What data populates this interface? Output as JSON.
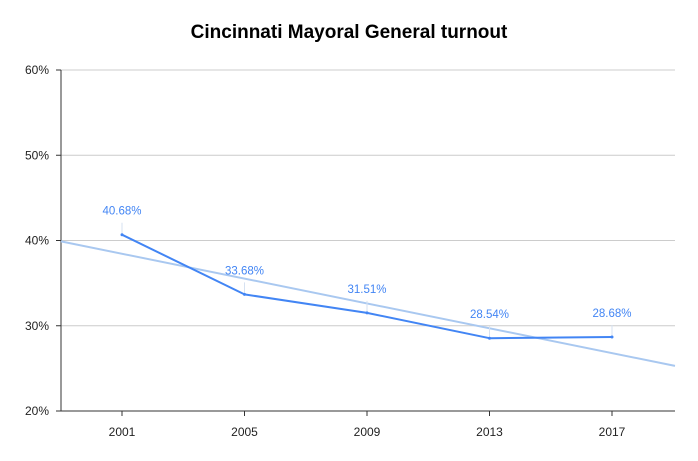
{
  "chart_data": {
    "type": "line",
    "title": "Cincinnati Mayoral General turnout",
    "xlabel": "",
    "ylabel": "",
    "categories": [
      "2001",
      "2005",
      "2009",
      "2013",
      "2017"
    ],
    "series": [
      {
        "values": [
          40.68,
          33.68,
          31.51,
          28.54,
          28.68
        ],
        "color": "#4285f4"
      }
    ],
    "data_labels": [
      "40.68%",
      "33.68%",
      "31.51%",
      "28.54%",
      "28.68%"
    ],
    "trendline": {
      "type": "linear",
      "color": "#a9c8f0"
    },
    "ylim": [
      20,
      60
    ],
    "yticks": [
      {
        "value": 20,
        "label": "20%"
      },
      {
        "value": 30,
        "label": "30%"
      },
      {
        "value": 40,
        "label": "40%"
      },
      {
        "value": 50,
        "label": "50%"
      },
      {
        "value": 60,
        "label": "60%"
      }
    ],
    "grid": true,
    "legend": "none"
  }
}
